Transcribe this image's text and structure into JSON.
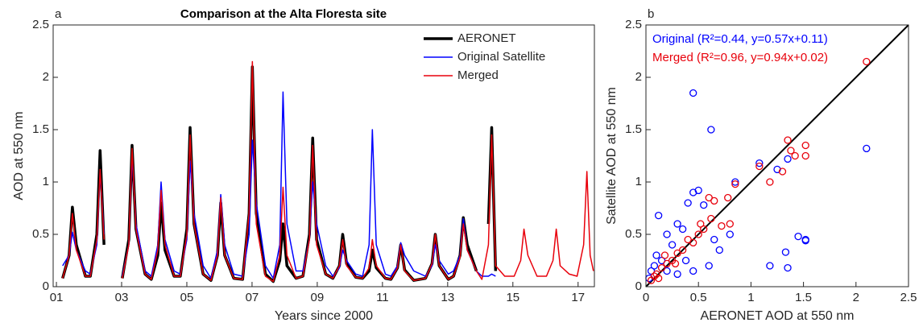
{
  "chart_data": [
    {
      "type": "line",
      "panel_label": "a",
      "title": "Comparison at the Alta Floresta site",
      "x_label": "Years since 2000",
      "y_label": "AOD at 550 nm",
      "xlim": [
        0.9,
        17.5
      ],
      "ylim": [
        0,
        2.5
      ],
      "xticks": [
        {
          "value": 1,
          "label": "01"
        },
        {
          "value": 3,
          "label": "03"
        },
        {
          "value": 5,
          "label": "05"
        },
        {
          "value": 7,
          "label": "07"
        },
        {
          "value": 9,
          "label": "09"
        },
        {
          "value": 11,
          "label": "11"
        },
        {
          "value": 13,
          "label": "13"
        },
        {
          "value": 15,
          "label": "15"
        },
        {
          "value": 17,
          "label": "17"
        }
      ],
      "yticks": [
        0,
        0.5,
        1,
        1.5,
        2,
        2.5
      ],
      "legend": "upper right",
      "x": [
        1.19,
        1.39,
        1.49,
        1.61,
        1.89,
        2.04,
        2.24,
        2.34,
        2.46,
        2.74,
        3.02,
        3.22,
        3.32,
        3.44,
        3.72,
        3.91,
        4.11,
        4.21,
        4.33,
        4.61,
        4.8,
        5.0,
        5.1,
        5.22,
        5.5,
        5.74,
        5.94,
        6.04,
        6.16,
        6.44,
        6.71,
        6.91,
        7.01,
        7.13,
        7.41,
        7.65,
        7.85,
        7.95,
        8.07,
        8.35,
        8.56,
        8.76,
        8.86,
        8.98,
        9.26,
        9.48,
        9.68,
        9.78,
        9.9,
        10.18,
        10.39,
        10.59,
        10.69,
        10.81,
        11.09,
        11.26,
        11.46,
        11.56,
        11.68,
        11.96,
        12.32,
        12.52,
        12.62,
        12.74,
        13.02,
        13.18,
        13.38,
        13.48,
        13.6,
        13.88,
        14.05,
        14.25,
        14.35,
        14.47,
        14.75,
        15.04,
        15.24,
        15.34,
        15.46,
        15.74,
        16.03,
        16.23,
        16.33,
        16.45,
        16.73,
        16.97,
        17.17,
        17.27,
        17.37,
        17.47
      ],
      "series": [
        {
          "name": "AERONET",
          "color": "#000000",
          "line_width": 3.5,
          "values": [
            0.08,
            0.3,
            0.76,
            0.4,
            0.1,
            0.1,
            0.5,
            1.3,
            0.4,
            null,
            0.08,
            0.45,
            1.35,
            0.55,
            0.12,
            0.07,
            0.3,
            0.8,
            0.35,
            0.1,
            0.1,
            0.55,
            1.52,
            0.6,
            0.12,
            0.06,
            0.3,
            0.8,
            0.3,
            0.08,
            0.07,
            0.7,
            2.1,
            0.7,
            0.12,
            0.05,
            0.25,
            0.6,
            0.2,
            0.08,
            0.1,
            0.5,
            1.42,
            0.45,
            0.12,
            0.08,
            0.2,
            0.5,
            0.22,
            0.09,
            0.08,
            0.15,
            0.35,
            0.18,
            0.08,
            0.07,
            0.18,
            0.4,
            0.16,
            0.06,
            0.08,
            0.22,
            0.5,
            0.2,
            0.07,
            0.1,
            0.3,
            0.66,
            0.4,
            0.15,
            null,
            0.6,
            1.52,
            0.15,
            null,
            null,
            null,
            null,
            null,
            null,
            null,
            null,
            null,
            null,
            null,
            null,
            null,
            null,
            null,
            null
          ]
        },
        {
          "name": "Original Satellite",
          "color": "#0000ff",
          "line_width": 1.5,
          "values": [
            0.2,
            0.3,
            0.52,
            0.35,
            0.15,
            0.12,
            0.4,
            1.1,
            0.5,
            null,
            0.1,
            0.4,
            1.25,
            0.6,
            0.15,
            0.1,
            0.4,
            1.0,
            0.45,
            0.15,
            0.12,
            0.45,
            1.2,
            0.7,
            0.2,
            0.08,
            0.35,
            0.88,
            0.4,
            0.12,
            0.1,
            0.5,
            1.4,
            0.8,
            0.2,
            0.08,
            0.4,
            1.86,
            0.6,
            0.15,
            0.15,
            0.45,
            1.0,
            0.6,
            0.2,
            0.1,
            0.18,
            0.35,
            0.25,
            0.12,
            0.1,
            0.4,
            1.5,
            0.4,
            0.12,
            0.1,
            0.2,
            0.42,
            0.3,
            0.15,
            0.1,
            0.2,
            0.4,
            0.25,
            0.12,
            0.15,
            0.3,
            0.65,
            0.35,
            0.15,
            0.1,
            0.1,
            0.12,
            0.1,
            null,
            null,
            null,
            null,
            null,
            null,
            null,
            null,
            null,
            null,
            null,
            null,
            null,
            null,
            null,
            null
          ]
        },
        {
          "name": "Merged",
          "color": "#e8000b",
          "line_width": 1.5,
          "values": [
            0.08,
            0.3,
            0.7,
            0.35,
            0.1,
            0.1,
            0.45,
            1.12,
            0.45,
            null,
            0.08,
            0.4,
            1.32,
            0.55,
            0.12,
            0.07,
            0.35,
            0.92,
            0.4,
            0.1,
            0.1,
            0.5,
            1.45,
            0.6,
            0.12,
            0.06,
            0.3,
            0.85,
            0.3,
            0.08,
            0.07,
            0.7,
            2.15,
            0.6,
            0.1,
            0.05,
            0.3,
            0.95,
            0.3,
            0.08,
            0.1,
            0.45,
            1.35,
            0.4,
            0.12,
            0.08,
            0.2,
            0.45,
            0.2,
            0.09,
            0.08,
            0.18,
            0.45,
            0.2,
            0.08,
            0.07,
            0.18,
            0.4,
            0.15,
            0.06,
            0.08,
            0.22,
            0.5,
            0.2,
            0.07,
            0.1,
            0.28,
            0.6,
            0.35,
            0.15,
            0.07,
            0.4,
            1.45,
            0.2,
            0.1,
            0.1,
            0.25,
            0.55,
            0.3,
            0.1,
            0.1,
            0.25,
            0.55,
            0.2,
            0.12,
            0.1,
            0.4,
            1.1,
            0.3,
            0.15
          ]
        }
      ]
    },
    {
      "type": "scatter",
      "panel_label": "b",
      "x_label": "AERONET AOD at 550 nm",
      "y_label": "Satellite AOD at 550 nm",
      "xlim": [
        0,
        2.5
      ],
      "ylim": [
        0,
        2.5
      ],
      "xticks": [
        0,
        0.5,
        1,
        1.5,
        2,
        2.5
      ],
      "yticks": [
        0,
        0.5,
        1,
        1.5,
        2,
        2.5
      ],
      "legend": "upper left",
      "identity_line": true,
      "series": [
        {
          "name": "Original (R²=0.44, y=0.57x+0.11)",
          "color": "#0000ff",
          "x": [
            0.45,
            0.62,
            2.1,
            1.08,
            1.25,
            1.35,
            1.45,
            1.52,
            1.52,
            1.18,
            1.33,
            1.35,
            0.85,
            0.45,
            0.5,
            0.4,
            0.55,
            0.3,
            0.35,
            0.12,
            0.2,
            0.25,
            0.1,
            0.15,
            0.05,
            0.08,
            0.6,
            0.7,
            0.8,
            0.45,
            0.3,
            0.38,
            0.65,
            0.2,
            0.03
          ],
          "values": [
            1.85,
            1.5,
            1.32,
            1.18,
            1.12,
            1.22,
            0.48,
            0.45,
            0.44,
            0.2,
            0.33,
            0.18,
            1.0,
            0.9,
            0.92,
            0.8,
            0.78,
            0.6,
            0.55,
            0.68,
            0.5,
            0.4,
            0.3,
            0.25,
            0.15,
            0.2,
            0.2,
            0.35,
            0.5,
            0.15,
            0.12,
            0.25,
            0.45,
            0.15,
            0.08
          ]
        },
        {
          "name": "Merged (R²=0.96, y=0.94x+0.02)",
          "color": "#e8000b",
          "x": [
            2.1,
            1.35,
            1.38,
            1.52,
            1.42,
            1.52,
            1.3,
            1.18,
            1.08,
            0.85,
            0.78,
            0.65,
            0.62,
            0.8,
            0.72,
            0.55,
            0.5,
            0.45,
            0.4,
            0.35,
            0.3,
            0.25,
            0.2,
            0.15,
            0.1,
            0.05,
            0.6,
            0.52,
            0.18,
            0.28,
            0.08,
            0.12
          ],
          "values": [
            2.15,
            1.4,
            1.3,
            1.35,
            1.25,
            1.25,
            1.1,
            1.0,
            1.15,
            0.98,
            0.85,
            0.82,
            0.65,
            0.6,
            0.58,
            0.55,
            0.5,
            0.42,
            0.45,
            0.35,
            0.32,
            0.25,
            0.22,
            0.18,
            0.12,
            0.06,
            0.85,
            0.6,
            0.3,
            0.22,
            0.1,
            0.08
          ]
        }
      ]
    }
  ]
}
